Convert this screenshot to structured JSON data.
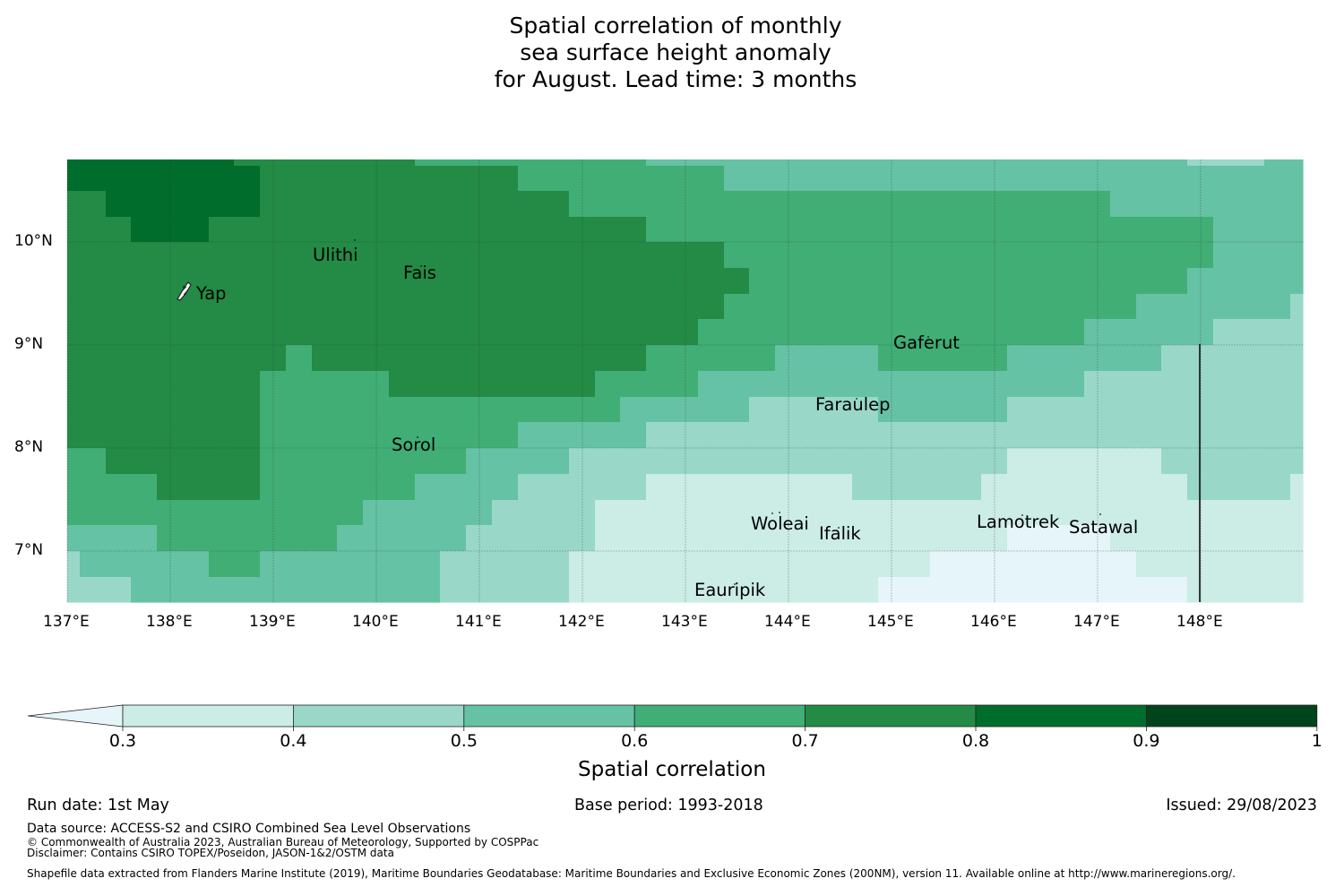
{
  "title": {
    "line1": "Spatial correlation of monthly",
    "line2": "sea surface height anomaly",
    "line3": "for August. Lead time: 3 months"
  },
  "map": {
    "lon_range": [
      137.0,
      149.0
    ],
    "lat_range": [
      6.5,
      10.8
    ],
    "x_ticks": [
      "137°E",
      "138°E",
      "139°E",
      "140°E",
      "141°E",
      "142°E",
      "143°E",
      "144°E",
      "145°E",
      "146°E",
      "147°E",
      "148°E"
    ],
    "y_ticks": [
      "10°N",
      "9°N",
      "8°N",
      "7°N"
    ],
    "islands": [
      "Ulithi",
      "Fais",
      "Yap",
      "Gaferut",
      "Faraulep",
      "Sorol",
      "Woleai",
      "Ifalik",
      "Lamotrek",
      "Satawal",
      "Eauripik"
    ],
    "boundary_lon": 148.0
  },
  "colorbar": {
    "ticks": [
      "0.3",
      "0.4",
      "0.5",
      "0.6",
      "0.7",
      "0.8",
      "0.9",
      "1"
    ],
    "colors": [
      "#e5f5f9",
      "#ccece6",
      "#99d8c9",
      "#66c2a4",
      "#41ae76",
      "#238b45",
      "#006d2c",
      "#00441b"
    ],
    "label": "Spatial correlation"
  },
  "footer": {
    "run_date": "Run date: 1st May",
    "base_period": "Base period: 1993-2018",
    "issued": "Issued: 29/08/2023",
    "data_source": "Data source: ACCESS-S2 and CSIRO Combined Sea Level Observations",
    "copyright": "© Commonwealth of Australia 2023, Australian Bureau of Meteorology, Supported by COSPPac",
    "disclaimer": "Disclaimer: Contains CSIRO TOPEX/Poseidon, JASON-1&2/OSTM data",
    "shapefile": "Shapefile data extracted from Flanders Marine Institute (2019), Maritime Boundaries Geodatabase: Maritime Boundaries and Exclusive Economic Zones (200NM), version 11. Available online at http://www.marineregions.org/."
  }
}
